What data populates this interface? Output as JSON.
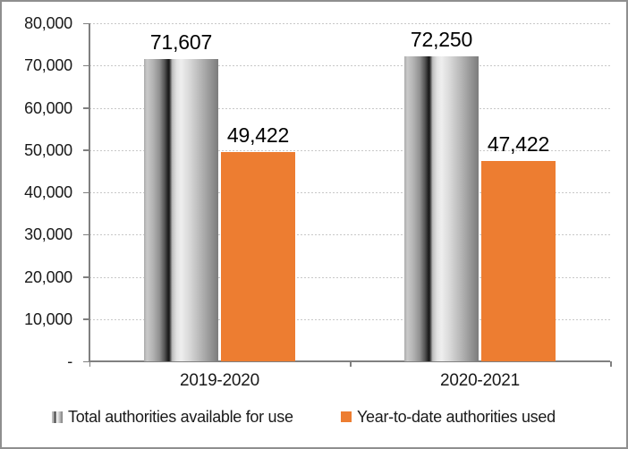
{
  "chart_data": {
    "type": "bar",
    "title": "",
    "categories": [
      "2019-2020",
      "2020-2021"
    ],
    "series": [
      {
        "name": "Total authorities available for use",
        "values": [
          71607,
          72250
        ],
        "labels": [
          "71,607",
          "72,250"
        ],
        "style": "gray-cylinder-gradient"
      },
      {
        "name": "Year-to-date authorities used",
        "values": [
          49422,
          47422
        ],
        "labels": [
          "49,422",
          "47,422"
        ],
        "style": "solid-orange"
      }
    ],
    "y_axis": {
      "min": 0,
      "max": 80000,
      "step": 10000,
      "tick_labels": [
        "80,000",
        "70,000",
        "60,000",
        "50,000",
        "40,000",
        "30,000",
        "20,000",
        "10,000",
        "-"
      ]
    },
    "grid": true,
    "legend_position": "bottom",
    "colors": {
      "series2_orange": "#ED7D31",
      "series1_dark": "#171717",
      "series1_light": "#eeeeee",
      "axis": "#808080",
      "gridline": "#c8c8c8",
      "text": "#1a1a1a",
      "frame_border": "#8f8f8f"
    }
  }
}
